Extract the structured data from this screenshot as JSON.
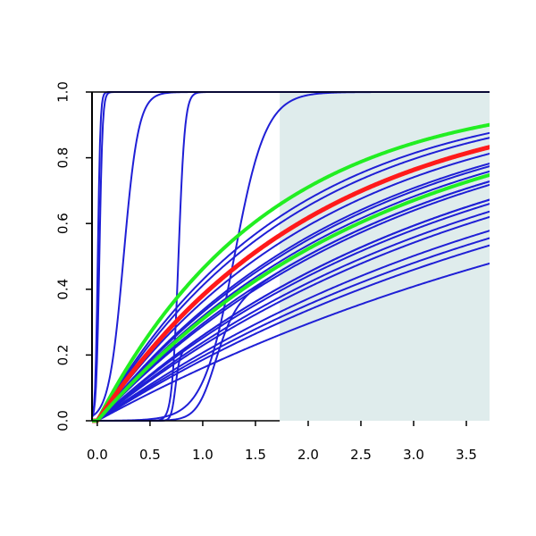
{
  "chart_data": {
    "type": "line",
    "title": "",
    "xlabel": "",
    "ylabel": "",
    "xlim": [
      -0.05,
      3.72
    ],
    "ylim": [
      0,
      1
    ],
    "x_ticks": [
      0.0,
      0.5,
      1.0,
      1.5,
      2.0,
      2.5,
      3.0,
      3.5
    ],
    "x_tick_labels": [
      "0.0",
      "0.5",
      "1.0",
      "1.5",
      "2.0",
      "2.5",
      "3.0",
      "3.5"
    ],
    "y_ticks": [
      0.0,
      0.2,
      0.4,
      0.6,
      0.8,
      1.0
    ],
    "y_tick_labels": [
      "0.0",
      "0.2",
      "0.4",
      "0.6",
      "0.8",
      "1.0"
    ],
    "shaded_region": {
      "x_from": 1.73,
      "x_to": 3.72,
      "color": "#dfecec"
    },
    "grid": false,
    "legend": "none",
    "colors": {
      "blue": "#1f1fd6",
      "red": "#ff1a1a",
      "green": "#22ee22",
      "frame": "#000000"
    },
    "series": [
      {
        "color": "blue",
        "width": 2,
        "kind": "logistic",
        "params": [
          0.005,
          0.012
        ]
      },
      {
        "color": "blue",
        "width": 2,
        "kind": "logistic",
        "params": [
          0.02,
          0.015
        ]
      },
      {
        "color": "blue",
        "width": 2,
        "kind": "logistic",
        "params": [
          0.25,
          0.07
        ]
      },
      {
        "color": "blue",
        "width": 2,
        "kind": "logistic",
        "params": [
          0.77,
          0.03
        ]
      },
      {
        "color": "blue",
        "width": 2,
        "kind": "logistic",
        "params": [
          1.3,
          0.15
        ]
      },
      {
        "color": "blue",
        "width": 2,
        "kind": "exp",
        "params": [
          0.175
        ]
      },
      {
        "color": "blue",
        "width": 2,
        "kind": "exp",
        "params": [
          0.205
        ]
      },
      {
        "color": "blue",
        "width": 2,
        "kind": "exp",
        "params": [
          0.218
        ]
      },
      {
        "color": "blue",
        "width": 2,
        "kind": "exp",
        "params": [
          0.232
        ]
      },
      {
        "color": "blue",
        "width": 2,
        "kind": "exp",
        "params": [
          0.26
        ]
      },
      {
        "color": "blue",
        "width": 2,
        "kind": "exp",
        "params": [
          0.272
        ]
      },
      {
        "color": "blue",
        "width": 2,
        "kind": "exp",
        "params": [
          0.29
        ]
      },
      {
        "color": "blue",
        "width": 2,
        "kind": "exp",
        "params": [
          0.3
        ]
      },
      {
        "color": "blue",
        "width": 2,
        "kind": "exp",
        "params": [
          0.34
        ]
      },
      {
        "color": "blue",
        "width": 2,
        "kind": "exp",
        "params": [
          0.35
        ]
      },
      {
        "color": "blue",
        "width": 2,
        "kind": "exp",
        "params": [
          0.382
        ]
      },
      {
        "color": "blue",
        "width": 2,
        "kind": "exp",
        "params": [
          0.41
        ]
      },
      {
        "color": "blue",
        "width": 2,
        "kind": "exp",
        "params": [
          0.45
        ]
      },
      {
        "color": "blue",
        "width": 2,
        "kind": "exp",
        "params": [
          0.53
        ]
      },
      {
        "color": "blue",
        "width": 2,
        "kind": "exp",
        "params": [
          0.56
        ]
      },
      {
        "color": "blue",
        "width": 2,
        "kind": "exp",
        "params": [
          0.4
        ]
      },
      {
        "color": "blue",
        "width": 2,
        "kind": "logistic_rise",
        "params": [
          0.74,
          0.02,
          0.3
        ]
      },
      {
        "color": "blue",
        "width": 2,
        "kind": "logistic_rise",
        "params": [
          1.1,
          0.09,
          0.35
        ]
      },
      {
        "color": "green",
        "width": 4,
        "kind": "exp",
        "params": [
          0.62
        ]
      },
      {
        "color": "red",
        "width": 5,
        "kind": "exp",
        "params": [
          0.48
        ]
      },
      {
        "color": "green",
        "width": 4,
        "kind": "exp",
        "params": [
          0.37
        ]
      }
    ]
  }
}
